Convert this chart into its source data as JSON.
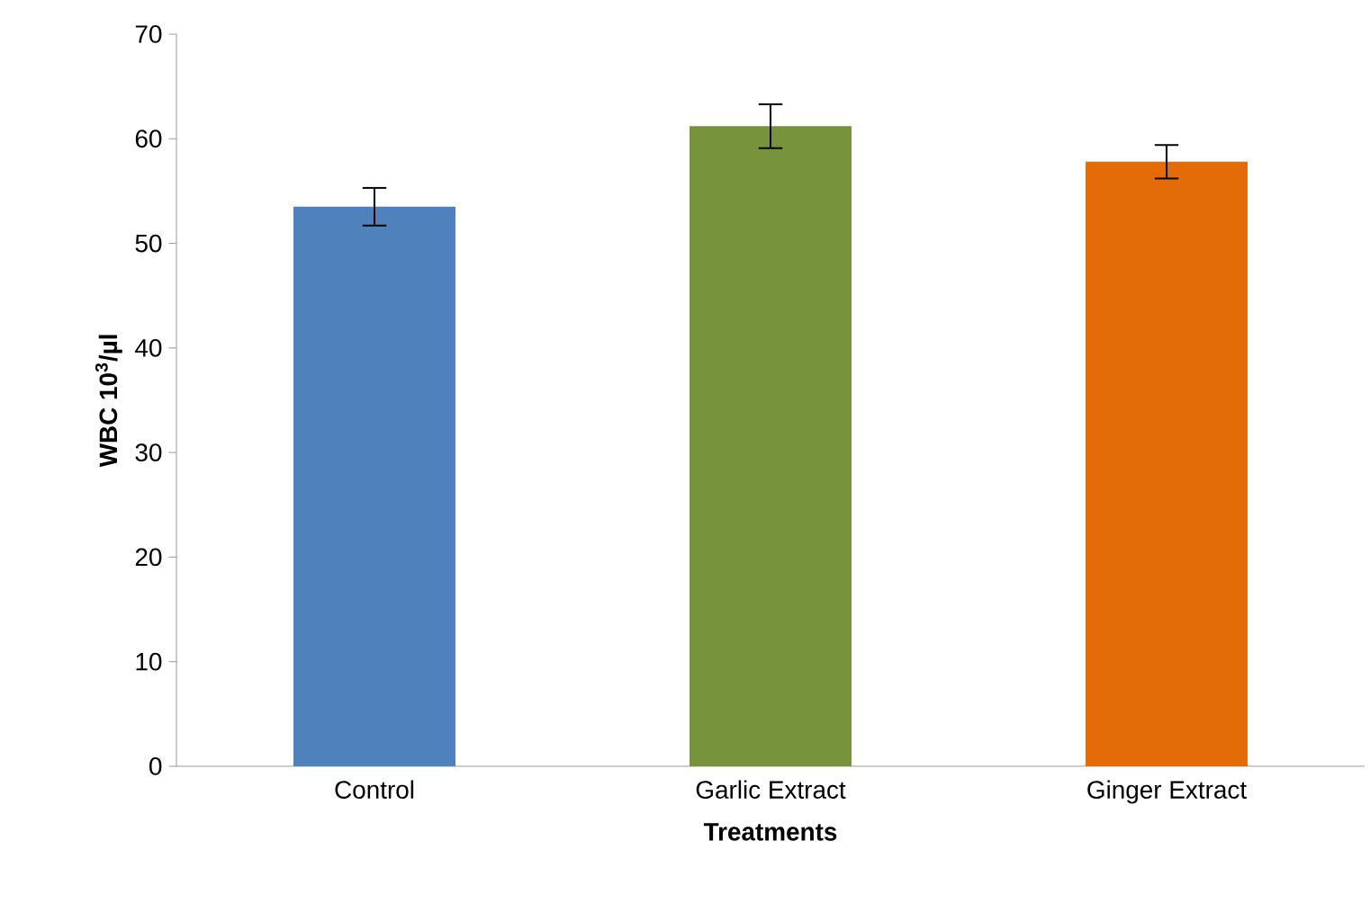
{
  "chart_data": {
    "type": "bar",
    "xlabel": "Treatments",
    "ylabel": "WBC 10$^{3}$/µl",
    "categories": [
      "Control",
      "Garlic Extract",
      "Ginger Extract"
    ],
    "values": [
      53.5,
      61.2,
      57.8
    ],
    "colors": [
      "#4f81bd",
      "#77933c",
      "#e36c09"
    ],
    "errors": [
      1.8,
      2.1,
      1.6
    ],
    "ylim": [
      0,
      70
    ],
    "yticks": [
      0,
      10,
      20,
      30,
      40,
      50,
      60,
      70
    ],
    "grid": false
  }
}
